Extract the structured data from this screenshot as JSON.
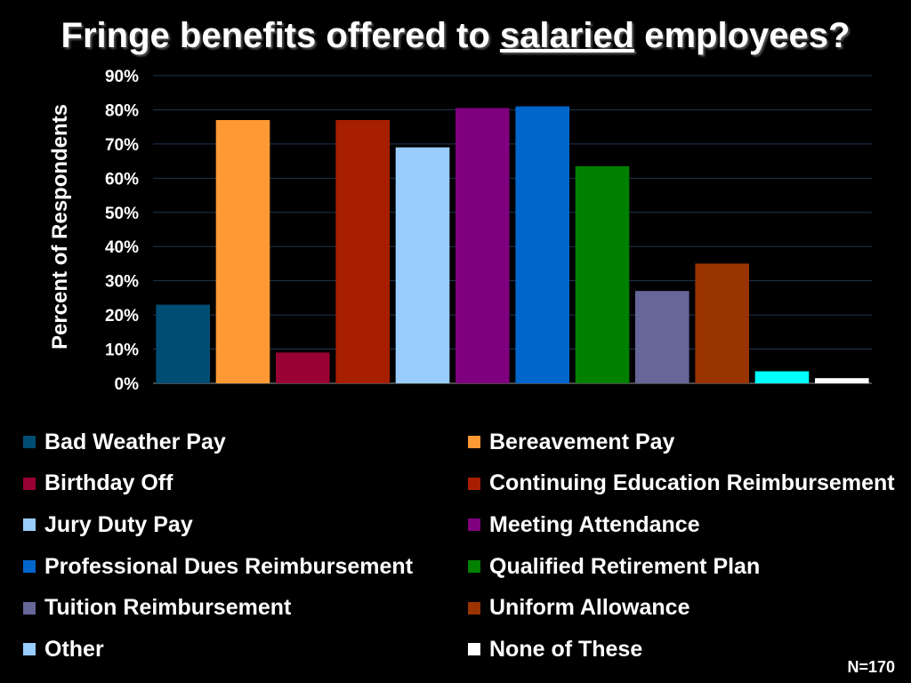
{
  "title": {
    "before": "Fringe benefits offered to ",
    "emphasis": "salaried",
    "after": " employees?"
  },
  "sample_note": "N=170",
  "chart_data": {
    "type": "bar",
    "title": "Fringe benefits offered to salaried employees?",
    "ylabel": "Percent of Respondents",
    "xlabel": "",
    "ylim": [
      0,
      90
    ],
    "y_ticks": [
      "0%",
      "10%",
      "20%",
      "30%",
      "40%",
      "50%",
      "60%",
      "70%",
      "80%",
      "90%"
    ],
    "grid": true,
    "legend_position": "bottom",
    "categories": [
      "Bad Weather Pay",
      "Bereavement Pay",
      "Birthday Off",
      "Continuing Education Reimbursement",
      "Jury Duty Pay",
      "Meeting Attendance",
      "Professional Dues Reimbursement",
      "Qualified Retirement Plan",
      "Tuition Reimbursement",
      "Uniform Allowance",
      "Other",
      "None of These"
    ],
    "values": [
      23,
      77,
      9,
      77,
      69,
      80.5,
      81,
      63.5,
      27,
      35,
      3.5,
      1.5
    ],
    "colors": [
      "#004d73",
      "#ff9933",
      "#990033",
      "#a81e00",
      "#99ccff",
      "#7f007f",
      "#0066cc",
      "#008000",
      "#666699",
      "#993300",
      "#00ffff",
      "#ffffff"
    ],
    "legend_colors": [
      "#004d73",
      "#ff9933",
      "#990033",
      "#a81e00",
      "#99ccff",
      "#7f007f",
      "#0066cc",
      "#008000",
      "#666699",
      "#993300",
      "#99ccff",
      "#ffffff"
    ]
  }
}
